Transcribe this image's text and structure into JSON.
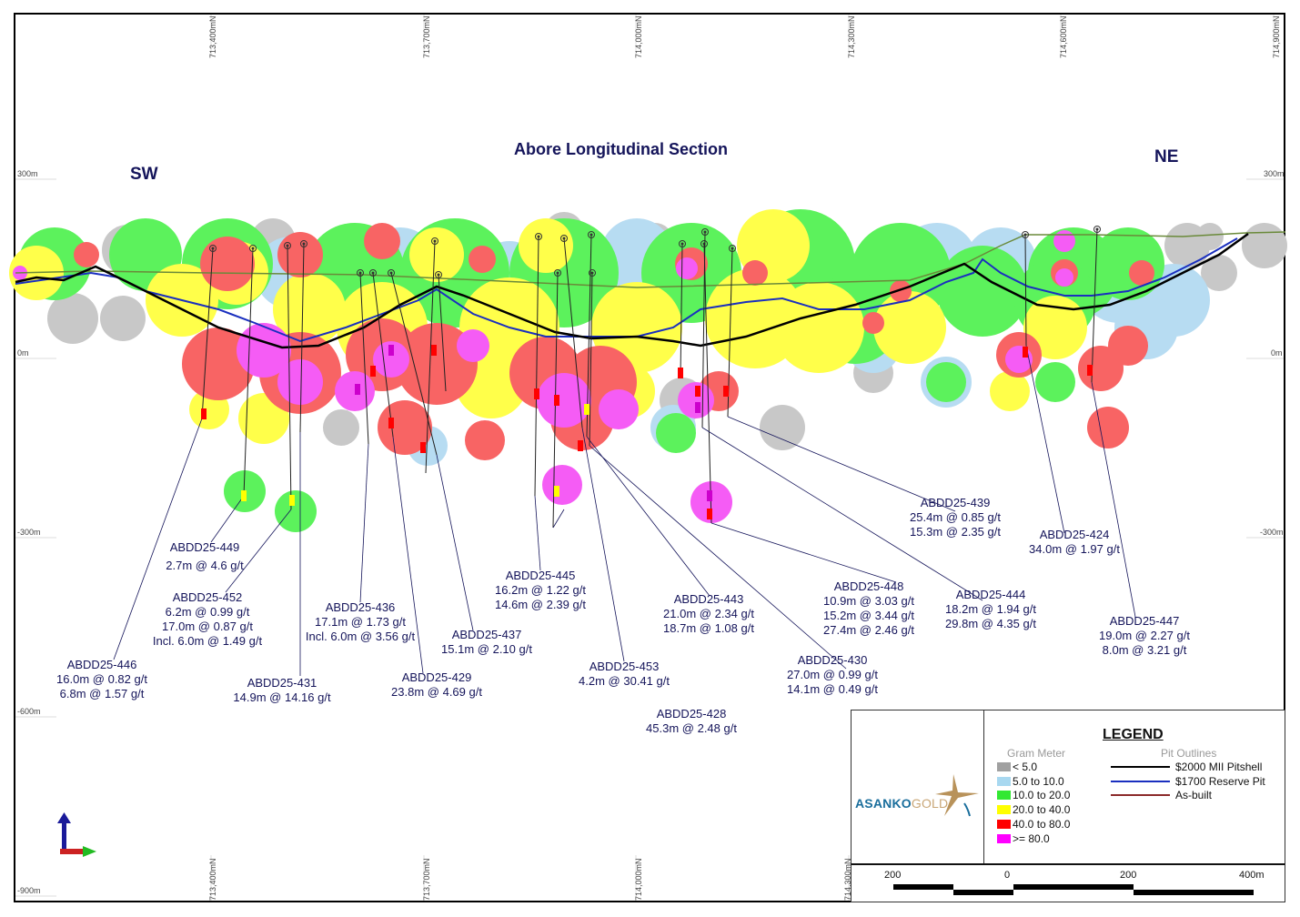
{
  "title": "Abore Longitudinal Section",
  "directions": {
    "left": "SW",
    "right": "NE"
  },
  "eastings_top": [
    "713,400mN",
    "713,700mN",
    "714,000mN",
    "714,300mN",
    "714,600mN",
    "714,900mN"
  ],
  "eastings_bottom": [
    "713,400mN",
    "713,700mN",
    "714,000mN",
    "714,300mN"
  ],
  "elevations_left": [
    "300m",
    "0m",
    "-300m",
    "-600m",
    "-900m"
  ],
  "elevations_right": [
    "300m",
    "0m",
    "-300m"
  ],
  "colors": {
    "lt5": "#c8c8c8",
    "r5_10": "#b7dcf2",
    "r10_20": "#5cf25c",
    "r20_40": "#ffff4a",
    "r40_80": "#f86464",
    "gte80": "#f55cf5",
    "pit2000": "#000000",
    "pit1700": "#1a2fbf",
    "asbuilt": "#8b2a2a",
    "label": "#14145a"
  },
  "holes": [
    {
      "id": "ABDD25-449",
      "lines": [
        "2.7m @ 4.6 g/t"
      ]
    },
    {
      "id": "ABDD25-452",
      "lines": [
        "6.2m @ 0.99 g/t",
        "17.0m @ 0.87 g/t",
        "Incl. 6.0m @ 1.49 g/t"
      ]
    },
    {
      "id": "ABDD25-446",
      "lines": [
        "16.0m @ 0.82 g/t",
        "6.8m @ 1.57 g/t"
      ]
    },
    {
      "id": "ABDD25-431",
      "lines": [
        "14.9m @ 14.16 g/t"
      ]
    },
    {
      "id": "ABDD25-436",
      "lines": [
        "17.1m @ 1.73 g/t",
        "Incl. 6.0m @ 3.56 g/t"
      ]
    },
    {
      "id": "ABDD25-429",
      "lines": [
        "23.8m @ 4.69 g/t"
      ]
    },
    {
      "id": "ABDD25-437",
      "lines": [
        "15.1m @ 2.10 g/t"
      ]
    },
    {
      "id": "ABDD25-445",
      "lines": [
        "16.2m @ 1.22 g/t",
        "14.6m @ 2.39 g/t"
      ]
    },
    {
      "id": "ABDD25-453",
      "lines": [
        "4.2m @ 30.41 g/t"
      ]
    },
    {
      "id": "ABDD25-428",
      "lines": [
        "45.3m @ 2.48 g/t"
      ]
    },
    {
      "id": "ABDD25-443",
      "lines": [
        "21.0m @ 2.34 g/t",
        "18.7m @ 1.08 g/t"
      ]
    },
    {
      "id": "ABDD25-430",
      "lines": [
        "27.0m @ 0.99 g/t",
        "14.1m @ 0.49 g/t"
      ]
    },
    {
      "id": "ABDD25-448",
      "lines": [
        "10.9m @ 3.03 g/t",
        "15.2m @ 3.44 g/t",
        "27.4m @ 2.46 g/t"
      ]
    },
    {
      "id": "ABDD25-439",
      "lines": [
        "25.4m @ 0.85 g/t",
        "15.3m @ 2.35 g/t"
      ]
    },
    {
      "id": "ABDD25-444",
      "lines": [
        "18.2m @ 1.94 g/t",
        "29.8m @ 4.35 g/t"
      ]
    },
    {
      "id": "ABDD25-424",
      "lines": [
        "34.0m @ 1.97 g/t"
      ]
    },
    {
      "id": "ABDD25-447",
      "lines": [
        "19.0m @ 2.27 g/t",
        "8.0m @ 3.21 g/t"
      ]
    }
  ],
  "legend": {
    "title": "LEGEND",
    "gram_meter_heading": "Gram Meter",
    "gram_meter": [
      {
        "label": "< 5.0",
        "color": "#a0a0a0"
      },
      {
        "label": "5.0 to 10.0",
        "color": "#a8d8f0"
      },
      {
        "label": "10.0 to 20.0",
        "color": "#33e833"
      },
      {
        "label": "20.0 to 40.0",
        "color": "#ffff00"
      },
      {
        "label": "40.0 to 80.0",
        "color": "#ff0000"
      },
      {
        "label": " >= 80.0",
        "color": "#ff00ff"
      }
    ],
    "pit_heading": "Pit Outlines",
    "pits": [
      {
        "label": "$2000 MII Pitshell",
        "color": "#000000"
      },
      {
        "label": "$1700 Reserve Pit",
        "color": "#1a2fbf"
      },
      {
        "label": "As-built",
        "color": "#8b2a2a"
      }
    ],
    "logo": {
      "primary": "ASANKO",
      "secondary": "GOLD"
    }
  },
  "scale": {
    "labels": [
      "200",
      "0",
      "200",
      "400m"
    ]
  }
}
